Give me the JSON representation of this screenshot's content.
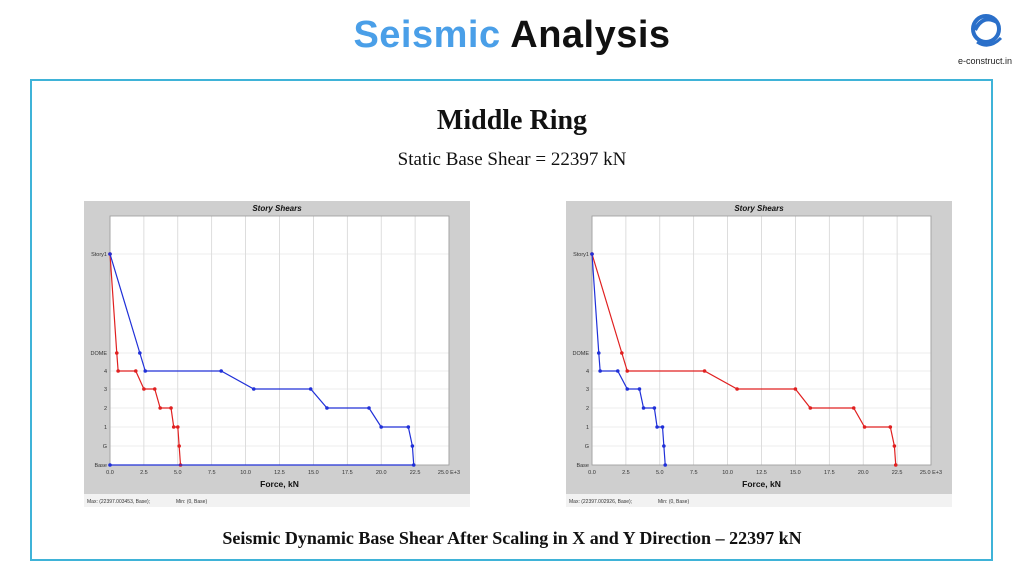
{
  "header": {
    "title_word1": "Seismic",
    "title_word2": "Analysis",
    "logo_text": "e-construct.in",
    "logo_icon": "e-swirl-logo"
  },
  "main": {
    "heading": "Middle Ring",
    "subheading": "Static Base Shear = 22397 kN",
    "footer": "Seismic Dynamic Base Shear After Scaling in X and Y Direction – 22397 kN"
  },
  "colors": {
    "title_accent": "#4a9fe8",
    "frame_border": "#3fb3d8",
    "series_red": "#e02020",
    "series_blue": "#2030d8"
  },
  "chart_data": [
    {
      "type": "line",
      "title": "Story Shears",
      "xlabel": "Force, kN",
      "xlim": [
        0,
        25
      ],
      "x_ticks": [
        "0.0",
        "2.5",
        "5.0",
        "7.5",
        "10.0",
        "12.5",
        "15.0",
        "17.5",
        "20.0",
        "22.5",
        "25.0 E+3"
      ],
      "stories": [
        "Base",
        "G",
        "1",
        "2",
        "3",
        "4",
        "DOME",
        "Story1"
      ],
      "grid": true,
      "footer_max": "Max: (22397.003453, Base);",
      "footer_min": "Min: (0, Base)",
      "series": [
        {
          "color": "#e02020",
          "points": [
            {
              "story": "Story1",
              "x": 0.0
            },
            {
              "story": "DOME",
              "x": 0.5
            },
            {
              "story": "4",
              "x": 0.6
            },
            {
              "story": "4",
              "x": 1.9
            },
            {
              "story": "3",
              "x": 2.5
            },
            {
              "story": "3",
              "x": 3.3
            },
            {
              "story": "2",
              "x": 3.7
            },
            {
              "story": "2",
              "x": 4.5
            },
            {
              "story": "1",
              "x": 4.7
            },
            {
              "story": "1",
              "x": 5.0
            },
            {
              "story": "G",
              "x": 5.1
            },
            {
              "story": "Base",
              "x": 5.2
            }
          ]
        },
        {
          "color": "#2030d8",
          "points": [
            {
              "story": "Story1",
              "x": 0.0
            },
            {
              "story": "DOME",
              "x": 2.2
            },
            {
              "story": "4",
              "x": 2.6
            },
            {
              "story": "4",
              "x": 8.2
            },
            {
              "story": "3",
              "x": 10.6
            },
            {
              "story": "3",
              "x": 14.8
            },
            {
              "story": "2",
              "x": 16.0
            },
            {
              "story": "2",
              "x": 19.1
            },
            {
              "story": "1",
              "x": 20.0
            },
            {
              "story": "1",
              "x": 22.0
            },
            {
              "story": "G",
              "x": 22.3
            },
            {
              "story": "Base",
              "x": 22.4
            },
            {
              "story": "Base",
              "x": 0.0
            }
          ]
        }
      ]
    },
    {
      "type": "line",
      "title": "Story Shears",
      "xlabel": "Force, kN",
      "xlim": [
        0,
        25
      ],
      "x_ticks": [
        "0.0",
        "2.5",
        "5.0",
        "7.5",
        "10.0",
        "12.5",
        "15.0",
        "17.5",
        "20.0",
        "22.5",
        "25.0 E+3"
      ],
      "stories": [
        "Base",
        "G",
        "1",
        "2",
        "3",
        "4",
        "DOME",
        "Story1"
      ],
      "grid": true,
      "footer_max": "Max: (22397.002926, Base);",
      "footer_min": "Min: (0, Base)",
      "series": [
        {
          "color": "#e02020",
          "points": [
            {
              "story": "Story1",
              "x": 0.0
            },
            {
              "story": "DOME",
              "x": 2.2
            },
            {
              "story": "4",
              "x": 2.6
            },
            {
              "story": "4",
              "x": 8.3
            },
            {
              "story": "3",
              "x": 10.7
            },
            {
              "story": "3",
              "x": 15.0
            },
            {
              "story": "2",
              "x": 16.1
            },
            {
              "story": "2",
              "x": 19.3
            },
            {
              "story": "1",
              "x": 20.1
            },
            {
              "story": "1",
              "x": 22.0
            },
            {
              "story": "G",
              "x": 22.3
            },
            {
              "story": "Base",
              "x": 22.4
            }
          ]
        },
        {
          "color": "#2030d8",
          "points": [
            {
              "story": "Story1",
              "x": 0.0
            },
            {
              "story": "DOME",
              "x": 0.5
            },
            {
              "story": "4",
              "x": 0.6
            },
            {
              "story": "4",
              "x": 1.9
            },
            {
              "story": "3",
              "x": 2.6
            },
            {
              "story": "3",
              "x": 3.5
            },
            {
              "story": "2",
              "x": 3.8
            },
            {
              "story": "2",
              "x": 4.6
            },
            {
              "story": "1",
              "x": 4.8
            },
            {
              "story": "1",
              "x": 5.2
            },
            {
              "story": "G",
              "x": 5.3
            },
            {
              "story": "Base",
              "x": 5.4
            }
          ]
        }
      ]
    }
  ]
}
